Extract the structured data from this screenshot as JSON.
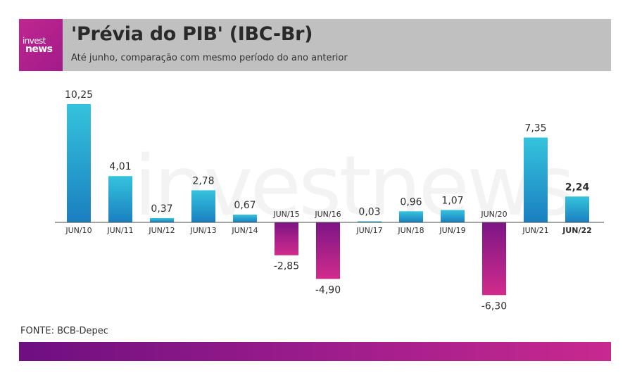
{
  "brand": {
    "logo_line1": "invest",
    "logo_line2": "news",
    "watermark": "investnews",
    "accent": "#c0268f"
  },
  "header": {
    "title": "'Prévia do PIB' (IBC-Br)",
    "subtitle": "Até junho, comparação com mesmo período do ano anterior"
  },
  "footer": {
    "source": "FONTE: BCB-Depec"
  },
  "chart_data": {
    "type": "bar",
    "categories": [
      "JUN/10",
      "JUN/11",
      "JUN/12",
      "JUN/13",
      "JUN/14",
      "JUN/15",
      "JUN/16",
      "JUN/17",
      "JUN/18",
      "JUN/19",
      "JUN/20",
      "JUN/21",
      "JUN/22"
    ],
    "value_labels": [
      "10,25",
      "4,01",
      "0,37",
      "2,78",
      "0,67",
      "-2,85",
      "-4,90",
      "0,03",
      "0,96",
      "1,07",
      "-6,30",
      "7,35",
      "2,24"
    ],
    "values": [
      10.25,
      4.01,
      0.37,
      2.78,
      0.67,
      -2.85,
      -4.9,
      0.03,
      0.96,
      1.07,
      -6.3,
      7.35,
      2.24
    ],
    "highlight_category": "JUN/22",
    "positive_colors": [
      "#35c3dc",
      "#1a7fc0"
    ],
    "negative_colors": [
      "#7c1585",
      "#d12c8c"
    ],
    "grid": false,
    "legend": "none"
  }
}
